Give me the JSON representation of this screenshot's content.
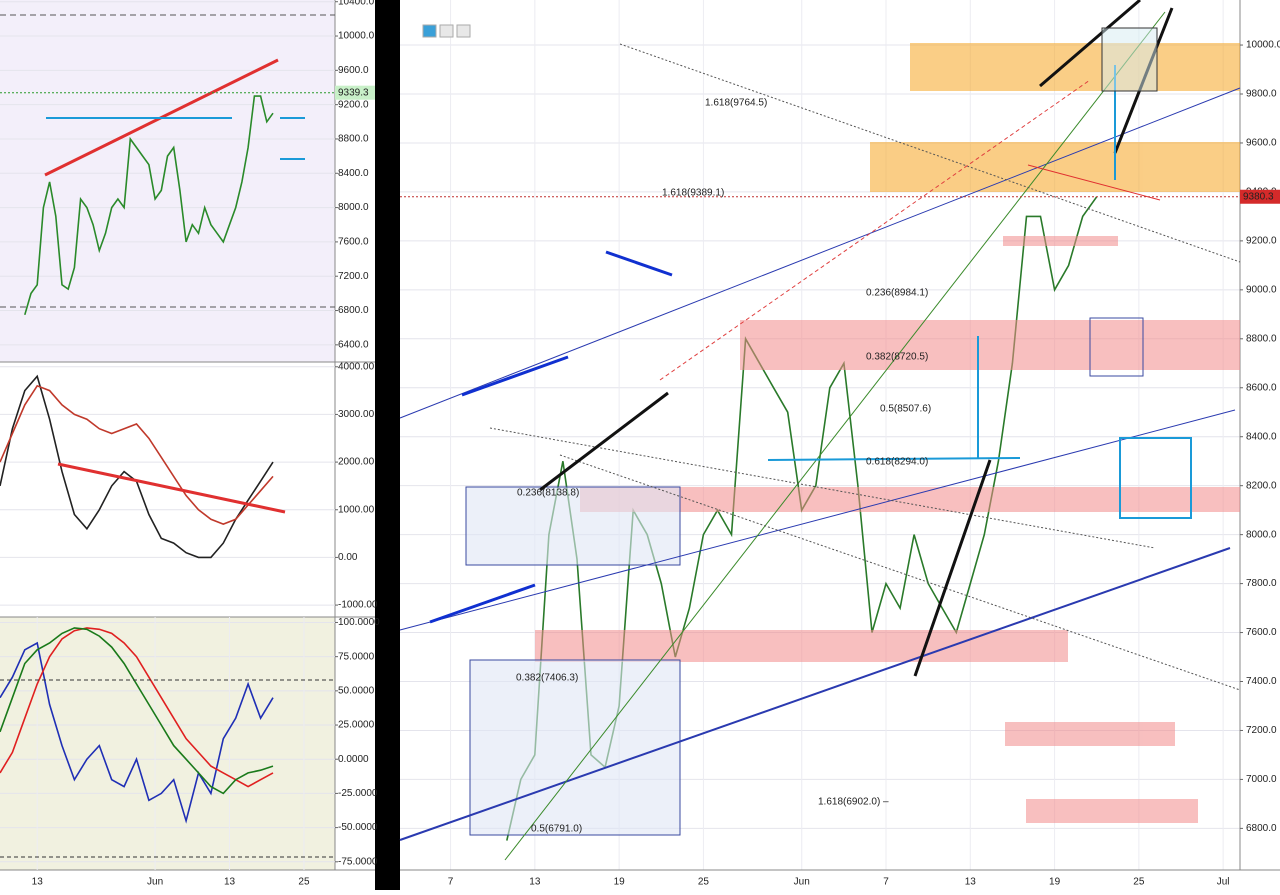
{
  "chart_data": [
    {
      "type": "line",
      "name": "left-price",
      "x": [
        -2,
        -1,
        0,
        1,
        2,
        3,
        4,
        5,
        6,
        7,
        8,
        9,
        10,
        11,
        12,
        13,
        14,
        15,
        16,
        17,
        18,
        19,
        20,
        21,
        22,
        23,
        24,
        25,
        26,
        27,
        28,
        29,
        30,
        31,
        32,
        33,
        34,
        35,
        36,
        37,
        38
      ],
      "series": [
        {
          "color": "#2a8a2a",
          "values": [
            6750,
            7000,
            7100,
            8000,
            8300,
            7900,
            7100,
            7050,
            7300,
            8100,
            8000,
            7800,
            7500,
            7700,
            8000,
            8100,
            8000,
            8800,
            8700,
            8600,
            8500,
            8100,
            8200,
            8600,
            8700,
            8200,
            7600,
            7800,
            7700,
            8000,
            7800,
            7700,
            7600,
            7800,
            8000,
            8300,
            8700,
            9300,
            9300,
            9000,
            9100
          ]
        }
      ],
      "xlim": [
        -6,
        48
      ],
      "ylim": [
        6200,
        10420
      ],
      "yticks": [
        {
          "value": 6400,
          "label": "6400.0"
        },
        {
          "value": 6800,
          "label": "6800.0"
        },
        {
          "value": 7200,
          "label": "7200.0"
        },
        {
          "value": 7600,
          "label": "7600.0"
        },
        {
          "value": 8000,
          "label": "8000.0"
        },
        {
          "value": 8400,
          "label": "8400.0"
        },
        {
          "value": 8800,
          "label": "8800.0"
        },
        {
          "value": 9200,
          "label": "9200.0"
        },
        {
          "value": 9600,
          "label": "9600.0"
        },
        {
          "value": 10000,
          "label": "10000.0"
        },
        {
          "value": 10400,
          "label": "10400.0"
        }
      ],
      "price_label": {
        "value": 9339.3,
        "label": "9339.3"
      }
    },
    {
      "type": "line",
      "name": "left-oscillator",
      "x": [
        -6,
        -4,
        -2,
        0,
        2,
        4,
        6,
        8,
        10,
        12,
        14,
        16,
        18,
        20,
        22,
        24,
        26,
        28,
        30,
        32,
        34,
        36,
        38
      ],
      "series": [
        {
          "color": "#222222",
          "values": [
            1500,
            2700,
            3500,
            3800,
            2900,
            1800,
            900,
            600,
            1000,
            1500,
            1800,
            1600,
            900,
            400,
            300,
            100,
            0,
            0,
            300,
            800,
            1200,
            1600,
            2000
          ]
        },
        {
          "color": "#c0392b",
          "values": [
            2000,
            2600,
            3200,
            3600,
            3500,
            3200,
            3000,
            2900,
            2700,
            2600,
            2700,
            2800,
            2500,
            2100,
            1700,
            1300,
            1000,
            800,
            700,
            800,
            1100,
            1400,
            1700
          ]
        }
      ],
      "xlim": [
        -6,
        48
      ],
      "ylim": [
        -1250,
        4100
      ],
      "yticks": [
        {
          "value": -1000,
          "label": "-1000.00"
        },
        {
          "value": 0,
          "label": "0.00"
        },
        {
          "value": 1000,
          "label": "1000.00"
        },
        {
          "value": 2000,
          "label": "2000.00"
        },
        {
          "value": 3000,
          "label": "3000.00"
        },
        {
          "value": 4000,
          "label": "4000.00"
        }
      ]
    },
    {
      "type": "line",
      "name": "left-stochastic",
      "x": [
        -6,
        -4,
        -2,
        0,
        2,
        4,
        6,
        8,
        10,
        12,
        14,
        16,
        18,
        20,
        22,
        24,
        26,
        28,
        30,
        32,
        34,
        36,
        38
      ],
      "series": [
        {
          "color": "#1f2fb5",
          "values": [
            45,
            60,
            80,
            85,
            40,
            10,
            -15,
            0,
            10,
            -15,
            -20,
            0,
            -30,
            -25,
            -15,
            -45,
            -10,
            -25,
            15,
            30,
            55,
            30,
            45
          ]
        },
        {
          "color": "#e02020",
          "values": [
            -10,
            5,
            30,
            55,
            75,
            88,
            94,
            96,
            95,
            92,
            85,
            75,
            60,
            45,
            30,
            15,
            5,
            -5,
            -10,
            -15,
            -20,
            -15,
            -10
          ]
        },
        {
          "color": "#1a7a1a",
          "values": [
            20,
            45,
            70,
            80,
            85,
            92,
            96,
            95,
            90,
            82,
            70,
            55,
            40,
            25,
            10,
            0,
            -10,
            -20,
            -25,
            -15,
            -10,
            -8,
            -5
          ]
        }
      ],
      "xlim": [
        -6,
        48
      ],
      "ylim": [
        -81,
        104
      ],
      "xticks": [
        {
          "value": 0,
          "label": "13"
        },
        {
          "value": 19,
          "label": "Jun"
        },
        {
          "value": 31,
          "label": "13"
        },
        {
          "value": 43,
          "label": "25"
        }
      ],
      "yticks": [
        {
          "value": -75,
          "label": "-75.0000"
        },
        {
          "value": -50,
          "label": "-50.0000"
        },
        {
          "value": -25,
          "label": "-25.0000"
        },
        {
          "value": 0,
          "label": "0.0000"
        },
        {
          "value": 25,
          "label": "25.0000"
        },
        {
          "value": 50,
          "label": "50.0000"
        },
        {
          "value": 75,
          "label": "75.0000"
        },
        {
          "value": 100,
          "label": "100.0000"
        }
      ]
    },
    {
      "type": "line",
      "name": "main-price",
      "x": [
        4,
        5,
        6,
        7,
        8,
        9,
        10,
        11,
        12,
        13,
        14,
        15,
        16,
        17,
        18,
        19,
        20,
        21,
        22,
        23,
        24,
        25,
        26,
        27,
        28,
        29,
        30,
        31,
        32,
        33,
        34,
        35,
        36,
        37,
        38,
        39,
        40,
        41,
        42,
        43,
        44,
        45,
        46
      ],
      "series": [
        {
          "color": "#2a7a2a",
          "values": [
            6750,
            7000,
            7100,
            8000,
            8300,
            7900,
            7100,
            7050,
            7300,
            8100,
            8000,
            7800,
            7500,
            7700,
            8000,
            8100,
            8000,
            8800,
            8700,
            8600,
            8500,
            8100,
            8200,
            8600,
            8700,
            8200,
            7600,
            7800,
            7700,
            8000,
            7800,
            7700,
            7600,
            7800,
            8000,
            8300,
            8700,
            9300,
            9300,
            9000,
            9100,
            9300,
            9380
          ]
        }
      ],
      "xlim": [
        -3.6,
        56.2
      ],
      "ylim": [
        6630,
        10184
      ],
      "xticks": [
        {
          "value": 0,
          "label": "7"
        },
        {
          "value": 6,
          "label": "13"
        },
        {
          "value": 12,
          "label": "19"
        },
        {
          "value": 18,
          "label": "25"
        },
        {
          "value": 25,
          "label": "Jun"
        },
        {
          "value": 31,
          "label": "7"
        },
        {
          "value": 37,
          "label": "13"
        },
        {
          "value": 43,
          "label": "19"
        },
        {
          "value": 49,
          "label": "25"
        },
        {
          "value": 55,
          "label": "Jul"
        }
      ],
      "yticks": [
        {
          "value": 6800,
          "label": "6800.0"
        },
        {
          "value": 7000,
          "label": "7000.0"
        },
        {
          "value": 7200,
          "label": "7200.0"
        },
        {
          "value": 7400,
          "label": "7400.0"
        },
        {
          "value": 7600,
          "label": "7600.0"
        },
        {
          "value": 7800,
          "label": "7800.0"
        },
        {
          "value": 8000,
          "label": "8000.0"
        },
        {
          "value": 8200,
          "label": "8200.0"
        },
        {
          "value": 8400,
          "label": "8400.0"
        },
        {
          "value": 8600,
          "label": "8600.0"
        },
        {
          "value": 8800,
          "label": "8800.0"
        },
        {
          "value": 9000,
          "label": "9000.0"
        },
        {
          "value": 9200,
          "label": "9200.0"
        },
        {
          "value": 9400,
          "label": "9400.0"
        },
        {
          "value": 9600,
          "label": "9600.0"
        },
        {
          "value": 9800,
          "label": "9800.0"
        },
        {
          "value": 10000,
          "label": "10000.0"
        }
      ],
      "price_label": {
        "value": 9380.3,
        "label": "9380.3"
      },
      "annotations": [
        "1.618(9764.5)",
        "1.618(9389.1)",
        "0.236(8984.1)",
        "0.382(8720.5)",
        "0.5(8507.6)",
        "0.618(8294.0)",
        "0.236(8138.8)",
        "0.382(7406.3)",
        "0.5(6791.0)",
        "1.618(6902.0) –"
      ]
    }
  ]
}
